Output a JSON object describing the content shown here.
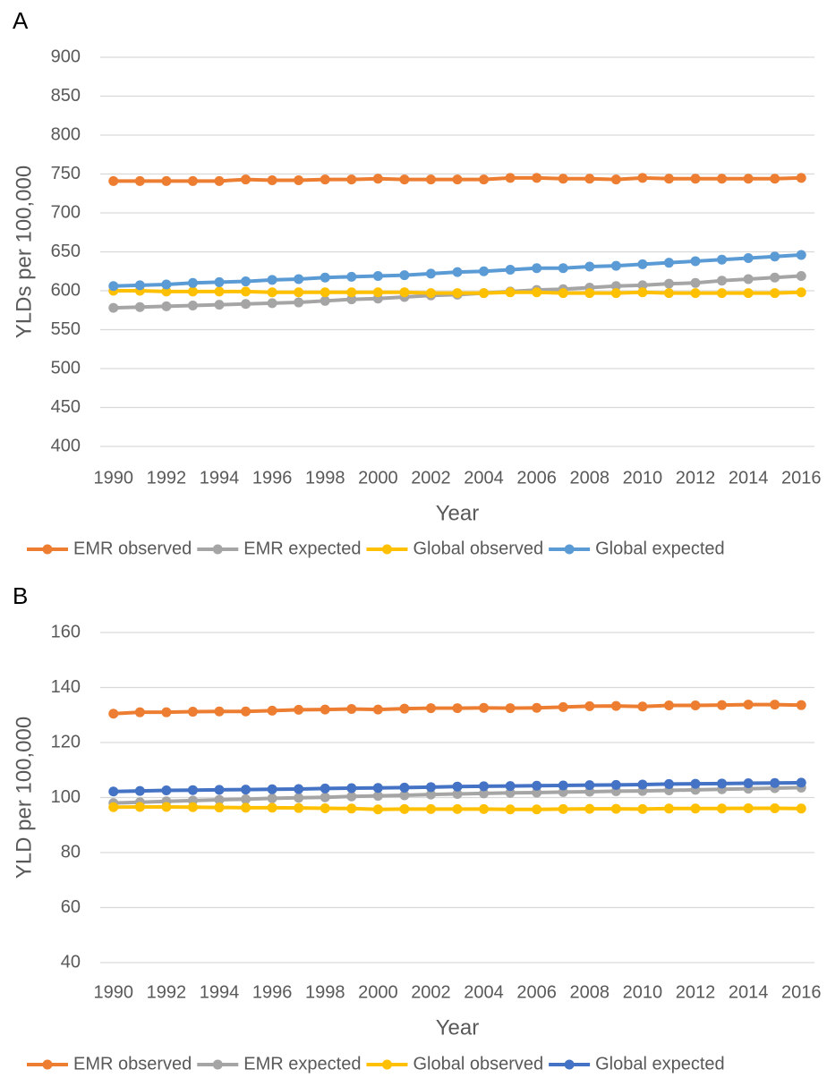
{
  "chart_data": [
    {
      "type": "line",
      "label": "A",
      "y_label": "YLDs per 100,000",
      "x_label": "Year",
      "x": [
        1990,
        1991,
        1992,
        1993,
        1994,
        1995,
        1996,
        1997,
        1998,
        1999,
        2000,
        2001,
        2002,
        2003,
        2004,
        2005,
        2006,
        2007,
        2008,
        2009,
        2010,
        2011,
        2012,
        2013,
        2014,
        2015,
        2016
      ],
      "xlim": [
        1989.5,
        2016.5
      ],
      "xticks": [
        1990,
        1992,
        1994,
        1996,
        1998,
        2000,
        2002,
        2004,
        2006,
        2008,
        2010,
        2012,
        2014,
        2016
      ],
      "ylim": [
        400,
        900
      ],
      "yticks": [
        400,
        450,
        500,
        550,
        600,
        650,
        700,
        750,
        800,
        850,
        900
      ],
      "grid": true,
      "series": [
        {
          "name": "EMR observed",
          "color": "#ed7d31",
          "values": [
            741,
            741,
            741,
            741,
            741,
            743,
            742,
            742,
            743,
            743,
            744,
            743,
            743,
            743,
            743,
            745,
            745,
            744,
            744,
            743,
            745,
            744,
            744,
            744,
            744,
            744,
            745
          ]
        },
        {
          "name": "EMR expected",
          "color": "#a5a5a5",
          "values": [
            578,
            579,
            580,
            581,
            582,
            583,
            584,
            585,
            587,
            589,
            590,
            592,
            594,
            595,
            597,
            599,
            601,
            602,
            604,
            606,
            607,
            609,
            610,
            613,
            615,
            617,
            619
          ]
        },
        {
          "name": "Global observed",
          "color": "#ffc000",
          "values": [
            600,
            600,
            599,
            599,
            599,
            599,
            598,
            598,
            598,
            598,
            598,
            598,
            597,
            597,
            597,
            598,
            598,
            597,
            597,
            597,
            598,
            597,
            597,
            597,
            597,
            597,
            598
          ]
        },
        {
          "name": "Global expected",
          "color": "#5b9bd5",
          "values": [
            606,
            607,
            608,
            610,
            611,
            612,
            614,
            615,
            617,
            618,
            619,
            620,
            622,
            624,
            625,
            627,
            629,
            629,
            631,
            632,
            634,
            636,
            638,
            640,
            642,
            644,
            646
          ]
        }
      ]
    },
    {
      "type": "line",
      "label": "B",
      "y_label": "YLD per 100,000",
      "x_label": "Year",
      "x": [
        1990,
        1991,
        1992,
        1993,
        1994,
        1995,
        1996,
        1997,
        1998,
        1999,
        2000,
        2001,
        2002,
        2003,
        2004,
        2005,
        2006,
        2007,
        2008,
        2009,
        2010,
        2011,
        2012,
        2013,
        2014,
        2015,
        2016
      ],
      "xlim": [
        1989.5,
        2016.5
      ],
      "xticks": [
        1990,
        1992,
        1994,
        1996,
        1998,
        2000,
        2002,
        2004,
        2006,
        2008,
        2010,
        2012,
        2014,
        2016
      ],
      "ylim": [
        40,
        160
      ],
      "yticks": [
        40,
        60,
        80,
        100,
        120,
        140,
        160
      ],
      "grid": true,
      "series": [
        {
          "name": "EMR observed",
          "color": "#ed7d31",
          "values": [
            130.5,
            131,
            131,
            131.2,
            131.3,
            131.3,
            131.6,
            131.9,
            132,
            132.2,
            132,
            132.3,
            132.5,
            132.5,
            132.6,
            132.5,
            132.6,
            132.9,
            133.2,
            133.3,
            133.1,
            133.5,
            133.5,
            133.6,
            133.8,
            133.8,
            133.6
          ]
        },
        {
          "name": "EMR expected",
          "color": "#a5a5a5",
          "values": [
            98,
            98.3,
            98.6,
            98.9,
            99.2,
            99.4,
            99.7,
            99.9,
            100.1,
            100.4,
            100.6,
            100.8,
            101.1,
            101.3,
            101.5,
            101.7,
            101.8,
            102,
            102.1,
            102.3,
            102.4,
            102.6,
            102.8,
            103,
            103.2,
            103.4,
            103.6
          ]
        },
        {
          "name": "Global observed",
          "color": "#ffc000",
          "values": [
            96.5,
            96.6,
            96.6,
            96.5,
            96.4,
            96.3,
            96.3,
            96.2,
            96.1,
            96,
            95.7,
            95.8,
            95.8,
            95.8,
            95.8,
            95.7,
            95.7,
            95.8,
            95.9,
            95.9,
            95.8,
            96,
            96,
            96,
            96.1,
            96.1,
            96
          ]
        },
        {
          "name": "Global expected",
          "color": "#4472c4",
          "values": [
            102.2,
            102.4,
            102.6,
            102.7,
            102.8,
            102.9,
            103,
            103.1,
            103.3,
            103.4,
            103.5,
            103.6,
            103.8,
            104,
            104.1,
            104.2,
            104.3,
            104.4,
            104.5,
            104.6,
            104.7,
            104.9,
            105,
            105.1,
            105.2,
            105.3,
            105.4
          ]
        }
      ]
    }
  ]
}
